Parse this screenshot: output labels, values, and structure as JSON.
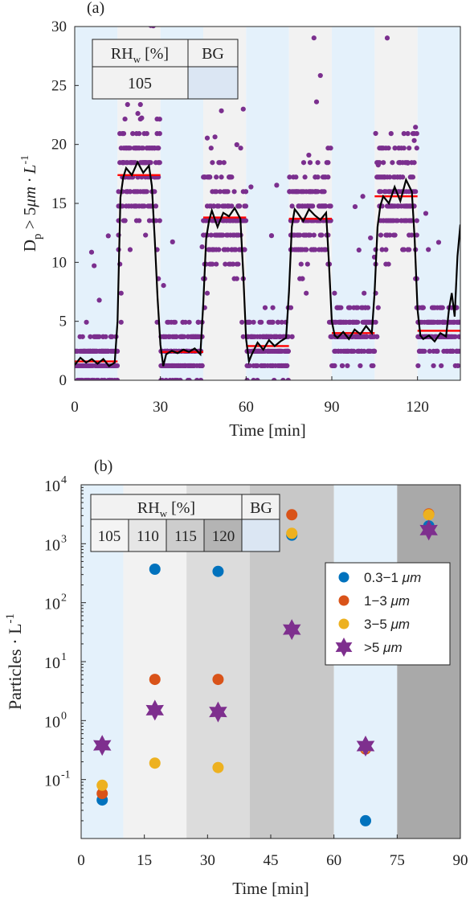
{
  "colors": {
    "bg_blue": "#e4f1fb",
    "bg_light": "#f2f2f2",
    "bg_mid": "#dcdcdc",
    "bg_dark": "#c8c8c8",
    "bg_darker": "#a9a9a9",
    "dots": "#7b2f8e",
    "line": "#000000",
    "mean": "#ff0000",
    "s1": "#0072bd",
    "s2": "#d95319",
    "s3": "#edb120",
    "s4": "#7e2f8e"
  },
  "chart_data": [
    {
      "panel_label": "(a)",
      "type": "scatter",
      "xlabel": "Time [min]",
      "ylabel_main": "D",
      "ylabel_sub": "p",
      "ylabel_rest": " > 5",
      "ylabel_mu": "μ",
      "ylabel_unit": "m · L",
      "ylabel_sup": "-1",
      "xlim": [
        0,
        135
      ],
      "ylim": [
        0,
        30
      ],
      "xticks": [
        0,
        30,
        60,
        90,
        120
      ],
      "yticks": [
        0,
        5,
        10,
        15,
        20,
        25,
        30
      ],
      "shading": [
        {
          "from": 0,
          "to": 15,
          "kind": "blue"
        },
        {
          "from": 15,
          "to": 30,
          "kind": "light"
        },
        {
          "from": 30,
          "to": 45,
          "kind": "blue"
        },
        {
          "from": 45,
          "to": 60,
          "kind": "light"
        },
        {
          "from": 60,
          "to": 75,
          "kind": "blue"
        },
        {
          "from": 75,
          "to": 90,
          "kind": "light"
        },
        {
          "from": 90,
          "to": 105,
          "kind": "blue"
        },
        {
          "from": 105,
          "to": 120,
          "kind": "light"
        },
        {
          "from": 120,
          "to": 135,
          "kind": "blue"
        }
      ],
      "legend_table": {
        "header": [
          "RH",
          "w",
          " [%]",
          "BG"
        ],
        "row": [
          "105",
          ""
        ]
      },
      "mean_segments": [
        {
          "x0": 0,
          "x1": 15,
          "y": 1.6
        },
        {
          "x0": 15,
          "x1": 30,
          "y": 17.4
        },
        {
          "x0": 30,
          "x1": 45,
          "y": 2.4
        },
        {
          "x0": 45,
          "x1": 60,
          "y": 13.8
        },
        {
          "x0": 60,
          "x1": 75,
          "y": 2.9
        },
        {
          "x0": 75,
          "x1": 90,
          "y": 13.7
        },
        {
          "x0": 90,
          "x1": 105,
          "y": 4.0
        },
        {
          "x0": 105,
          "x1": 120,
          "y": 15.6
        },
        {
          "x0": 120,
          "x1": 135,
          "y": 4.2
        }
      ],
      "smoothed_line": {
        "x": [
          0,
          2,
          4,
          6,
          8,
          10,
          12,
          14,
          15,
          16,
          17,
          18,
          20,
          22,
          24,
          26,
          27,
          28,
          29,
          30,
          31,
          32,
          34,
          36,
          38,
          40,
          42,
          44,
          45,
          46,
          47,
          48,
          50,
          52,
          54,
          56,
          58,
          59,
          60,
          61,
          62,
          64,
          66,
          68,
          70,
          72,
          74,
          75,
          76,
          77,
          78,
          80,
          82,
          84,
          86,
          88,
          89,
          90,
          91,
          92,
          94,
          96,
          98,
          100,
          102,
          104,
          105,
          106,
          107,
          108,
          110,
          112,
          114,
          116,
          118,
          119,
          120,
          121,
          122,
          124,
          126,
          128,
          130,
          131,
          132,
          133,
          134,
          135
        ],
        "y": [
          1.3,
          1.9,
          1.5,
          1.8,
          1.4,
          1.8,
          1.2,
          1.5,
          5.0,
          15.5,
          17.2,
          18.0,
          17.4,
          18.5,
          17.6,
          18.2,
          16.5,
          12.0,
          7.0,
          3.0,
          1.2,
          2.2,
          2.5,
          2.3,
          2.6,
          2.4,
          2.7,
          2.2,
          6.5,
          12.0,
          13.5,
          14.4,
          13.0,
          14.2,
          13.9,
          14.6,
          13.7,
          9.0,
          3.5,
          1.6,
          2.2,
          3.2,
          2.6,
          3.4,
          2.9,
          3.3,
          3.6,
          7.5,
          13.0,
          14.5,
          14.2,
          13.5,
          14.5,
          14.0,
          13.6,
          14.2,
          10.0,
          5.0,
          3.8,
          3.6,
          4.1,
          3.5,
          4.3,
          3.9,
          4.6,
          4.0,
          7.5,
          13.0,
          14.8,
          15.6,
          15.0,
          16.4,
          15.2,
          17.0,
          16.0,
          12.0,
          6.0,
          3.8,
          3.5,
          3.8,
          3.3,
          4.0,
          3.7,
          6.0,
          7.4,
          5.4,
          10.5,
          13.2
        ]
      }
    },
    {
      "panel_label": "(b)",
      "type": "scatter",
      "xlabel": "Time [min]",
      "ylabel": "Particles · L",
      "ylabel_sup": "-1",
      "xlim": [
        0,
        90
      ],
      "ylim_log10": [
        -2,
        4
      ],
      "y_scale": "log",
      "xticks": [
        0,
        15,
        30,
        45,
        60,
        75,
        90
      ],
      "ytick_labels": [
        {
          "base": "10",
          "exp": "-1",
          "pow": -1
        },
        {
          "base": "10",
          "exp": "0",
          "pow": 0
        },
        {
          "base": "10",
          "exp": "1",
          "pow": 1
        },
        {
          "base": "10",
          "exp": "2",
          "pow": 2
        },
        {
          "base": "10",
          "exp": "3",
          "pow": 3
        },
        {
          "base": "10",
          "exp": "4",
          "pow": 4
        }
      ],
      "shading": [
        {
          "from": 0,
          "to": 10,
          "kind": "blue"
        },
        {
          "from": 10,
          "to": 25,
          "kind": "light"
        },
        {
          "from": 25,
          "to": 40,
          "kind": "mid"
        },
        {
          "from": 40,
          "to": 60,
          "kind": "dark"
        },
        {
          "from": 60,
          "to": 75,
          "kind": "blue"
        },
        {
          "from": 75,
          "to": 90,
          "kind": "darker"
        }
      ],
      "legend_table": {
        "header": [
          "RH",
          "w",
          " [%]",
          "BG"
        ],
        "row": [
          "105",
          "110",
          "115",
          "120",
          ""
        ]
      },
      "legend": {
        "placement": "right",
        "entries": [
          {
            "label": "0.3−1 ",
            "mu": "μ",
            "unit": "m",
            "marker": "circle",
            "color_key": "s1"
          },
          {
            "label": "1−3 ",
            "mu": "μ",
            "unit": "m",
            "marker": "circle",
            "color_key": "s2"
          },
          {
            "label": "3−5 ",
            "mu": "μ",
            "unit": "m",
            "marker": "circle",
            "color_key": "s3"
          },
          {
            "label": ">5 ",
            "mu": "μ",
            "unit": "m",
            "marker": "star",
            "color_key": "s4"
          }
        ]
      },
      "series": [
        {
          "name": "0.3−1 μm",
          "marker": "circle",
          "color_key": "s1",
          "x": [
            5,
            17.5,
            32.5,
            50,
            67.5,
            82.5
          ],
          "y": [
            0.045,
            370,
            340,
            1400,
            0.02,
            2000
          ]
        },
        {
          "name": "1−3 μm",
          "marker": "circle",
          "color_key": "s2",
          "x": [
            5,
            17.5,
            32.5,
            50,
            67.5,
            82.5
          ],
          "y": [
            0.058,
            5,
            5,
            3100,
            0.33,
            3200
          ]
        },
        {
          "name": "3−5 μm",
          "marker": "circle",
          "color_key": "s3",
          "x": [
            5,
            17.5,
            32.5,
            50,
            67.5,
            82.5
          ],
          "y": [
            0.08,
            0.19,
            0.16,
            1500,
            0.35,
            3100
          ]
        },
        {
          "name": ">5 μm",
          "marker": "star",
          "color_key": "s4",
          "x": [
            5,
            17.5,
            32.5,
            50,
            67.5,
            82.5
          ],
          "y": [
            0.38,
            1.5,
            1.4,
            35,
            0.37,
            1700
          ]
        }
      ]
    }
  ]
}
